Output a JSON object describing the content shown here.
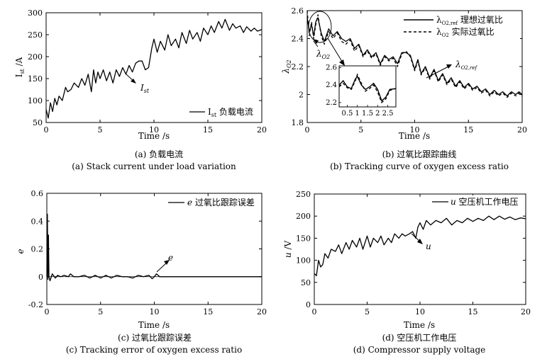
{
  "chart_data": [
    {
      "id": "a",
      "type": "line",
      "caption_cn": "(a) 负载电流",
      "caption_en": "(a) Stack current under load variation",
      "xlabel": "Time /s",
      "ylabel": "I_st /A",
      "xlim": [
        0,
        20
      ],
      "ylim": [
        50,
        300
      ],
      "xticks": [
        "0",
        "5",
        "10",
        "15",
        "20"
      ],
      "yticks": [
        "50",
        "100",
        "150",
        "200",
        "250",
        "300"
      ],
      "legend": "I_st 负载电流",
      "annotation": "I_st",
      "series": [
        {
          "x": [
            0,
            0.2,
            0.4,
            0.6,
            0.8,
            1.0,
            1.2,
            1.5,
            1.8,
            2.0,
            2.3,
            2.6,
            3.0,
            3.3,
            3.6,
            3.9,
            4.2,
            4.4,
            4.6,
            4.8,
            5.0,
            5.3,
            5.6,
            5.9,
            6.2,
            6.5,
            6.8,
            7.1,
            7.4,
            7.7,
            8.0,
            8.3,
            8.6,
            8.9,
            9.2,
            9.5,
            9.8,
            10.0,
            10.3,
            10.6,
            11.0,
            11.3,
            11.6,
            12.0,
            12.3,
            12.6,
            13.0,
            13.3,
            13.6,
            14.0,
            14.3,
            14.6,
            15.0,
            15.3,
            15.6,
            16.0,
            16.3,
            16.6,
            17.0,
            17.3,
            17.6,
            18.0,
            18.3,
            18.6,
            19.0,
            19.3,
            19.6,
            20.0
          ],
          "y": [
            80,
            60,
            95,
            75,
            105,
            90,
            110,
            100,
            130,
            120,
            125,
            140,
            130,
            150,
            135,
            160,
            120,
            170,
            140,
            165,
            150,
            170,
            145,
            165,
            140,
            170,
            155,
            175,
            160,
            180,
            165,
            185,
            190,
            190,
            170,
            175,
            220,
            240,
            210,
            235,
            215,
            250,
            225,
            240,
            220,
            255,
            230,
            260,
            240,
            255,
            235,
            265,
            250,
            270,
            255,
            280,
            265,
            285,
            260,
            275,
            265,
            270,
            255,
            268,
            258,
            265,
            258,
            262
          ]
        }
      ]
    },
    {
      "id": "b",
      "type": "line",
      "caption_cn": "(b) 过氧比跟踪曲线",
      "caption_en": "(b) Tracking curve of oxygen excess ratio",
      "xlabel": "Time /s",
      "ylabel": "λ_O2",
      "xlim": [
        0,
        20
      ],
      "ylim": [
        1.8,
        2.6
      ],
      "xticks": [
        "0",
        "5",
        "10",
        "15",
        "20"
      ],
      "yticks": [
        "1.8",
        "2",
        "2.2",
        "2.4",
        "2.6"
      ],
      "legend": [
        "λ_O2,ref 理想过氧比",
        "λ_O2 实际过氧比"
      ],
      "annotations": [
        "λ_O2",
        "λ_O2,ref"
      ],
      "inset": {
        "xticks": [
          "0.5",
          "1",
          "1.5",
          "2",
          "2.5"
        ],
        "yticks": [
          "2.2",
          "2.4",
          "2.6"
        ],
        "xlim": [
          0.1,
          2.9
        ],
        "ylim": [
          2.15,
          2.62
        ],
        "series": [
          {
            "x": [
              0.1,
              0.3,
              0.5,
              0.7,
              0.9,
              1.0,
              1.2,
              1.4,
              1.6,
              1.8,
              2.0,
              2.2,
              2.4,
              2.6,
              2.9
            ],
            "y": [
              2.4,
              2.45,
              2.38,
              2.36,
              2.47,
              2.5,
              2.4,
              2.35,
              2.38,
              2.42,
              2.35,
              2.22,
              2.26,
              2.35,
              2.36
            ]
          },
          {
            "x": [
              0.1,
              0.3,
              0.5,
              0.7,
              0.9,
              1.0,
              1.2,
              1.4,
              1.6,
              1.8,
              2.0,
              2.2,
              2.4,
              2.6,
              2.9
            ],
            "y": [
              2.38,
              2.42,
              2.37,
              2.35,
              2.45,
              2.52,
              2.42,
              2.33,
              2.36,
              2.4,
              2.32,
              2.2,
              2.24,
              2.34,
              2.36
            ]
          }
        ]
      },
      "series": [
        {
          "name": "λ_O2,ref 理想过氧比",
          "x": [
            0,
            0.2,
            0.4,
            0.6,
            0.8,
            1.0,
            1.3,
            1.6,
            2.0,
            2.4,
            2.8,
            3.2,
            3.6,
            4.0,
            4.4,
            4.8,
            5.2,
            5.6,
            6.0,
            6.4,
            6.8,
            7.2,
            7.6,
            8.0,
            8.4,
            8.8,
            9.2,
            9.6,
            10.0,
            10.3,
            10.6,
            11.0,
            11.4,
            11.8,
            12.2,
            12.6,
            13.0,
            13.4,
            13.8,
            14.2,
            14.6,
            15.0,
            15.4,
            15.8,
            16.2,
            16.6,
            17.0,
            17.4,
            17.8,
            18.2,
            18.6,
            19.0,
            19.4,
            19.7,
            20.0
          ],
          "y": [
            2.55,
            2.45,
            2.5,
            2.42,
            2.52,
            2.55,
            2.44,
            2.38,
            2.47,
            2.42,
            2.45,
            2.4,
            2.38,
            2.4,
            2.33,
            2.36,
            2.28,
            2.32,
            2.27,
            2.3,
            2.22,
            2.28,
            2.25,
            2.27,
            2.22,
            2.3,
            2.3,
            2.28,
            2.18,
            2.25,
            2.15,
            2.2,
            2.12,
            2.18,
            2.1,
            2.15,
            2.08,
            2.12,
            2.06,
            2.1,
            2.05,
            2.08,
            2.04,
            2.06,
            2.02,
            2.04,
            2.0,
            2.03,
            2.0,
            2.02,
            1.99,
            2.02,
            2.0,
            2.02,
            2.0
          ]
        },
        {
          "name": "λ_O2 实际过氧比",
          "x": [
            0,
            0.2,
            0.4,
            0.6,
            0.8,
            1.0,
            1.3,
            1.6,
            2.0,
            2.4,
            2.8,
            3.2,
            3.6,
            4.0,
            4.4,
            4.8,
            5.2,
            5.6,
            6.0,
            6.4,
            6.8,
            7.2,
            7.6,
            8.0,
            8.4,
            8.8,
            9.2,
            9.6,
            10.0,
            10.3,
            10.6,
            11.0,
            11.4,
            11.8,
            12.2,
            12.6,
            13.0,
            13.4,
            13.8,
            14.2,
            14.6,
            15.0,
            15.4,
            15.8,
            16.2,
            16.6,
            17.0,
            17.4,
            17.8,
            18.2,
            18.6,
            19.0,
            19.4,
            19.7,
            20.0
          ],
          "y": [
            2.6,
            2.42,
            2.52,
            2.4,
            2.5,
            2.57,
            2.42,
            2.36,
            2.45,
            2.4,
            2.44,
            2.38,
            2.36,
            2.39,
            2.31,
            2.35,
            2.27,
            2.31,
            2.26,
            2.29,
            2.21,
            2.27,
            2.24,
            2.26,
            2.2,
            2.29,
            2.31,
            2.27,
            2.17,
            2.24,
            2.14,
            2.19,
            2.11,
            2.17,
            2.09,
            2.14,
            2.07,
            2.11,
            2.05,
            2.09,
            2.04,
            2.07,
            2.03,
            2.05,
            2.01,
            2.03,
            1.99,
            2.02,
            1.99,
            2.01,
            1.98,
            2.01,
            1.99,
            2.01,
            1.99
          ]
        }
      ]
    },
    {
      "id": "c",
      "type": "line",
      "caption_cn": "(c) 过氧比跟踪误差",
      "caption_en": "(c) Tracking error of oxygen excess ratio",
      "xlabel": "Time /s",
      "ylabel": "e",
      "xlim": [
        0,
        20
      ],
      "ylim": [
        -0.2,
        0.6
      ],
      "xticks": [
        "0",
        "5",
        "10",
        "15",
        "20"
      ],
      "yticks": [
        "-0.2",
        "0",
        "0.2",
        "0.4",
        "0.6"
      ],
      "legend": "e 过氧比跟踪误差",
      "annotation": "e",
      "series": [
        {
          "x": [
            0,
            0.05,
            0.1,
            0.15,
            0.2,
            0.3,
            0.5,
            0.8,
            1.0,
            1.3,
            1.6,
            2.0,
            2.2,
            2.5,
            3.0,
            3.5,
            4.0,
            4.5,
            5.0,
            5.5,
            6.0,
            6.5,
            7.0,
            7.5,
            8.0,
            8.5,
            9.0,
            9.5,
            9.8,
            10.0,
            10.2,
            10.5,
            11.0,
            12.0,
            14.0,
            16.0,
            18.0,
            20.0
          ],
          "y": [
            0.0,
            0.45,
            -0.02,
            0.3,
            0.0,
            -0.03,
            0.02,
            -0.01,
            0.01,
            0.0,
            0.01,
            0.0,
            0.02,
            0.0,
            0.0,
            0.01,
            -0.01,
            0.01,
            -0.01,
            0.01,
            -0.01,
            0.01,
            0.0,
            0.0,
            -0.01,
            0.01,
            0.0,
            0.01,
            -0.015,
            0.0,
            0.02,
            0.0,
            0.0,
            0.0,
            0.0,
            0.0,
            0.0,
            0.0
          ]
        }
      ]
    },
    {
      "id": "d",
      "type": "line",
      "caption_cn": "(d) 空压机工作电压",
      "caption_en": "(d) Compressor supply voltage",
      "xlabel": "Time /s",
      "ylabel": "u /V",
      "xlim": [
        0,
        20
      ],
      "ylim": [
        0,
        250
      ],
      "xticks": [
        "0",
        "5",
        "10",
        "15",
        "20"
      ],
      "yticks": [
        "0",
        "50",
        "100",
        "150",
        "200",
        "250"
      ],
      "legend": "u 空压机工作电压",
      "annotation": "u",
      "series": [
        {
          "x": [
            0,
            0.2,
            0.4,
            0.6,
            0.8,
            1.0,
            1.3,
            1.6,
            2.0,
            2.3,
            2.6,
            3.0,
            3.3,
            3.6,
            4.0,
            4.3,
            4.6,
            5.0,
            5.3,
            5.6,
            6.0,
            6.3,
            6.6,
            7.0,
            7.3,
            7.6,
            8.0,
            8.3,
            8.6,
            9.0,
            9.3,
            9.6,
            9.8,
            10.0,
            10.3,
            10.6,
            11.0,
            11.5,
            12.0,
            12.5,
            13.0,
            13.5,
            14.0,
            14.5,
            15.0,
            15.5,
            16.0,
            16.5,
            17.0,
            17.5,
            18.0,
            18.5,
            19.0,
            19.5,
            20.0
          ],
          "y": [
            70,
            65,
            100,
            85,
            90,
            115,
            105,
            125,
            120,
            135,
            115,
            140,
            125,
            145,
            130,
            150,
            125,
            155,
            130,
            150,
            140,
            155,
            135,
            150,
            140,
            160,
            150,
            160,
            155,
            160,
            165,
            150,
            175,
            185,
            170,
            190,
            180,
            190,
            185,
            195,
            180,
            190,
            185,
            195,
            188,
            195,
            190,
            200,
            192,
            200,
            193,
            198,
            192,
            196,
            194
          ]
        }
      ]
    }
  ]
}
